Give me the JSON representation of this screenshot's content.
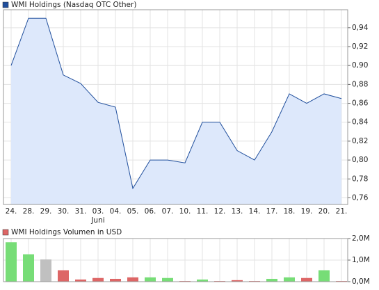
{
  "chart_data": [
    {
      "type": "line",
      "categories": [
        "24.",
        "28.",
        "29.",
        "30.",
        "31.",
        "03.",
        "04.",
        "05.",
        "06.",
        "07.",
        "10.",
        "11.",
        "12.",
        "13.",
        "14.",
        "17.",
        "18.",
        "19.",
        "20.",
        "21."
      ],
      "category_sublabels": [
        null,
        null,
        null,
        null,
        null,
        "Juni",
        null,
        null,
        null,
        null,
        null,
        null,
        null,
        null,
        null,
        null,
        null,
        null,
        null,
        null
      ],
      "series": [
        {
          "name": "WMI Holdings (Nasdaq OTC Other)",
          "color": "#1f4e9c",
          "values": [
            0.9,
            0.95,
            0.95,
            0.89,
            0.881,
            0.861,
            0.856,
            0.77,
            0.8,
            0.8,
            0.797,
            0.84,
            0.84,
            0.81,
            0.8,
            0.83,
            0.87,
            0.86,
            0.87,
            0.865
          ]
        }
      ],
      "ylim": [
        0.753,
        0.959
      ],
      "yticks": [
        {
          "value": 0.76,
          "label": "0,76"
        },
        {
          "value": 0.78,
          "label": "0,78"
        },
        {
          "value": 0.8,
          "label": "0,80"
        },
        {
          "value": 0.82,
          "label": "0,82"
        },
        {
          "value": 0.84,
          "label": "0,84"
        },
        {
          "value": 0.86,
          "label": "0,86"
        },
        {
          "value": 0.88,
          "label": "0,88"
        },
        {
          "value": 0.9,
          "label": "0,90"
        },
        {
          "value": 0.92,
          "label": "0,92"
        },
        {
          "value": 0.94,
          "label": "0,94"
        }
      ],
      "grid": true,
      "fill_color": "#dde8fb"
    },
    {
      "type": "bar",
      "series": [
        {
          "name": "WMI Holdings Volumen in USD",
          "color": "#dd6666",
          "values": [
            1830000,
            1270000,
            1030000,
            530000,
            100000,
            170000,
            130000,
            200000,
            200000,
            170000,
            30000,
            100000,
            30000,
            70000,
            30000,
            130000,
            200000,
            170000,
            530000,
            30000
          ],
          "colors": [
            "#77dd77",
            "#77dd77",
            "#c0c0c0",
            "#dd6666",
            "#dd6666",
            "#dd6666",
            "#dd6666",
            "#dd6666",
            "#77dd77",
            "#77dd77",
            "#dd6666",
            "#77dd77",
            "#dd6666",
            "#dd6666",
            "#dd6666",
            "#77dd77",
            "#77dd77",
            "#dd6666",
            "#77dd77",
            "#dd6666"
          ]
        }
      ],
      "ylim": [
        0,
        2000000
      ],
      "yticks": [
        {
          "value": 0,
          "label": "0,0M"
        },
        {
          "value": 1000000,
          "label": "1,0M"
        },
        {
          "value": 2000000,
          "label": "2,0M"
        }
      ],
      "grid": true
    }
  ]
}
